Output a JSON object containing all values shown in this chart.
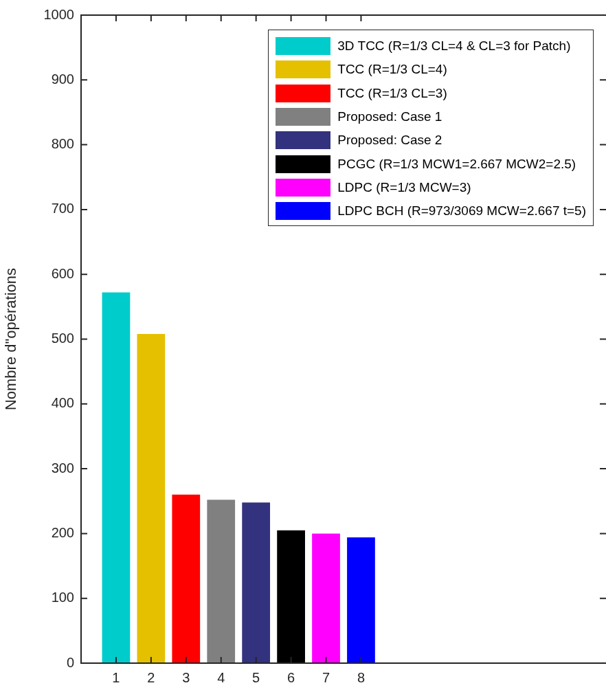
{
  "chart_data": {
    "type": "bar",
    "ylabel": "Nombre d\"opérations",
    "xlim": [
      0,
      15
    ],
    "xticks": [
      1,
      2,
      3,
      4,
      5,
      6,
      7,
      8
    ],
    "ylim": [
      0,
      1000
    ],
    "yticks": [
      0,
      100,
      200,
      300,
      400,
      500,
      600,
      700,
      800,
      900,
      1000
    ],
    "grid": false,
    "legend": "top right",
    "series": [
      {
        "name": "3D TCC (R=1/3 CL=4 & CL=3 for Patch)",
        "color": "#00cccc",
        "x": [
          1
        ],
        "values": [
          572
        ]
      },
      {
        "name": "TCC (R=1/3 CL=4)",
        "color": "#e5c000",
        "x": [
          2
        ],
        "values": [
          508
        ]
      },
      {
        "name": "TCC (R=1/3 CL=3)",
        "color": "#ff0000",
        "x": [
          3
        ],
        "values": [
          260
        ]
      },
      {
        "name": "Proposed: Case 1",
        "color": "#808080",
        "x": [
          4
        ],
        "values": [
          252
        ]
      },
      {
        "name": "Proposed: Case 2",
        "color": "#32327e",
        "x": [
          5
        ],
        "values": [
          248
        ]
      },
      {
        "name": "PCGC (R=1/3 MCW1=2.667 MCW2=2.5)",
        "color": "#000000",
        "x": [
          6
        ],
        "values": [
          205
        ]
      },
      {
        "name": "LDPC (R=1/3 MCW=3)",
        "color": "#ff00ff",
        "x": [
          7
        ],
        "values": [
          200
        ]
      },
      {
        "name": "LDPC BCH (R=973/3069 MCW=2.667 t=5)",
        "color": "#0000ff",
        "x": [
          8
        ],
        "values": [
          194
        ]
      }
    ]
  }
}
